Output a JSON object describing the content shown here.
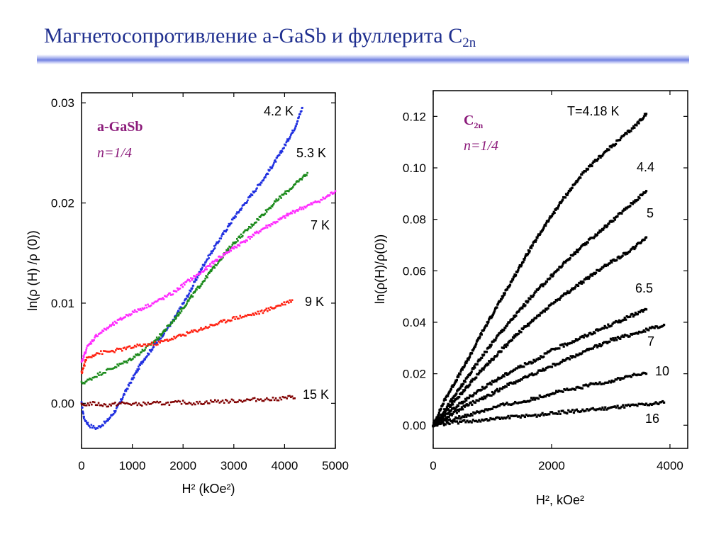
{
  "slide": {
    "title": "Магнетосопротивление a-GaSb и фуллерита C",
    "title_sub": "2n"
  },
  "chart_data": [
    {
      "type": "scatter",
      "xlabel": "H² (kOe²)",
      "ylabel": "ln(ρ (H) /ρ (0))",
      "xlim": [
        0,
        5000
      ],
      "ylim": [
        -0.0045,
        0.031
      ],
      "x_ticks": [
        "0",
        "1000",
        "2000",
        "3000",
        "4000",
        "5000"
      ],
      "y_ticks": [
        "0.00",
        "0.01",
        "0.02",
        "0.03"
      ],
      "annotation_material": "a-GaSb",
      "annotation_n": "n=1/4",
      "series": [
        {
          "name": "4.2 K",
          "color": "#1f2fe0",
          "x": [
            0,
            50,
            150,
            300,
            500,
            700,
            900,
            1200,
            1500,
            1800,
            2100,
            2400,
            2700,
            3000,
            3300,
            3600,
            3900,
            4200,
            4350
          ],
          "y": [
            0.0,
            -0.0015,
            -0.0022,
            -0.0025,
            -0.0018,
            -0.0005,
            0.0015,
            0.0042,
            0.0062,
            0.0082,
            0.0108,
            0.0138,
            0.0162,
            0.0185,
            0.0205,
            0.0225,
            0.0248,
            0.0275,
            0.0295
          ]
        },
        {
          "name": "5.3 K",
          "color": "#1b8a1b",
          "x": [
            0,
            100,
            300,
            600,
            900,
            1200,
            1500,
            1800,
            2100,
            2400,
            2700,
            3000,
            3300,
            3600,
            3900,
            4200,
            4450
          ],
          "y": [
            0.002,
            0.0022,
            0.0028,
            0.0035,
            0.0042,
            0.0052,
            0.0065,
            0.0082,
            0.0102,
            0.0122,
            0.0142,
            0.016,
            0.0175,
            0.019,
            0.0205,
            0.0218,
            0.023
          ]
        },
        {
          "name": "7 K",
          "color": "#ff2aff",
          "x": [
            0,
            100,
            300,
            600,
            900,
            1200,
            1500,
            1800,
            2100,
            2400,
            2700,
            3000,
            3300,
            3600,
            3900,
            4200,
            4500,
            4800,
            5000
          ],
          "y": [
            0.004,
            0.0055,
            0.0068,
            0.0078,
            0.0088,
            0.0095,
            0.0102,
            0.011,
            0.0122,
            0.0132,
            0.0145,
            0.0155,
            0.0165,
            0.0175,
            0.0183,
            0.0192,
            0.0198,
            0.0205,
            0.0212
          ]
        },
        {
          "name": "9 K",
          "color": "#ff2010",
          "x": [
            0,
            100,
            300,
            600,
            900,
            1200,
            1500,
            1800,
            2100,
            2400,
            2700,
            3000,
            3300,
            3600,
            3900,
            4150
          ],
          "y": [
            0.003,
            0.0045,
            0.005,
            0.0052,
            0.0055,
            0.0058,
            0.006,
            0.0065,
            0.007,
            0.0075,
            0.008,
            0.0085,
            0.0088,
            0.0092,
            0.0098,
            0.0103
          ]
        },
        {
          "name": "15 K",
          "color": "#800000",
          "x": [
            0,
            200,
            500,
            800,
            1100,
            1400,
            1700,
            2000,
            2300,
            2600,
            2900,
            3200,
            3500,
            3800,
            4100,
            4200
          ],
          "y": [
            -0.0002,
            0.0,
            -0.0002,
            0.0,
            -0.0001,
            0.0,
            0.0,
            0.0001,
            0.0,
            0.0002,
            0.0002,
            0.0003,
            0.0004,
            0.0004,
            0.0006,
            0.0005
          ]
        }
      ]
    },
    {
      "type": "scatter",
      "xlabel": "H², kOe²",
      "ylabel": "ln(ρ(H)/ρ(0))",
      "xlim": [
        0,
        4300
      ],
      "ylim": [
        -0.009,
        0.13
      ],
      "x_ticks": [
        "0",
        "2000",
        "4000"
      ],
      "y_ticks": [
        "0.00",
        "0.02",
        "0.04",
        "0.06",
        "0.08",
        "0.10",
        "0.12"
      ],
      "annotation_material": "C",
      "annotation_material_sub": "2n",
      "annotation_n": "n=1/4",
      "series": [
        {
          "name": "T=4.18 K",
          "color": "#000000",
          "x": [
            0,
            100,
            200,
            400,
            600,
            800,
            1000,
            1300,
            1600,
            1900,
            2200,
            2500,
            2800,
            3100,
            3400,
            3600
          ],
          "y": [
            0.0,
            0.005,
            0.01,
            0.018,
            0.026,
            0.035,
            0.043,
            0.055,
            0.067,
            0.078,
            0.088,
            0.097,
            0.104,
            0.11,
            0.116,
            0.121
          ]
        },
        {
          "name": "4.4",
          "color": "#000000",
          "x": [
            0,
            200,
            500,
            800,
            1100,
            1400,
            1700,
            2000,
            2300,
            2600,
            2900,
            3200,
            3400,
            3600
          ],
          "y": [
            0.0,
            0.006,
            0.016,
            0.026,
            0.035,
            0.043,
            0.051,
            0.058,
            0.065,
            0.071,
            0.077,
            0.083,
            0.087,
            0.091
          ]
        },
        {
          "name": "5",
          "color": "#000000",
          "x": [
            0,
            200,
            500,
            800,
            1100,
            1400,
            1700,
            2000,
            2300,
            2600,
            2900,
            3200,
            3400,
            3600
          ],
          "y": [
            0.0,
            0.005,
            0.013,
            0.021,
            0.028,
            0.035,
            0.041,
            0.047,
            0.052,
            0.057,
            0.062,
            0.066,
            0.069,
            0.073
          ]
        },
        {
          "name": "6.5",
          "color": "#000000",
          "x": [
            0,
            200,
            500,
            800,
            1100,
            1400,
            1700,
            2000,
            2300,
            2600,
            2900,
            3200,
            3400,
            3600
          ],
          "y": [
            0.0,
            0.004,
            0.009,
            0.014,
            0.018,
            0.022,
            0.025,
            0.029,
            0.032,
            0.035,
            0.038,
            0.041,
            0.043,
            0.045
          ]
        },
        {
          "name": "7",
          "color": "#000000",
          "x": [
            0,
            300,
            600,
            900,
            1200,
            1500,
            1800,
            2100,
            2400,
            2700,
            3000,
            3300,
            3600,
            3900
          ],
          "y": [
            0.0,
            0.004,
            0.008,
            0.011,
            0.015,
            0.018,
            0.021,
            0.024,
            0.027,
            0.03,
            0.033,
            0.035,
            0.037,
            0.039
          ]
        },
        {
          "name": "10",
          "color": "#000000",
          "x": [
            0,
            300,
            600,
            900,
            1200,
            1500,
            1800,
            2100,
            2400,
            2700,
            3000,
            3300,
            3600
          ],
          "y": [
            0.0,
            0.002,
            0.004,
            0.006,
            0.008,
            0.009,
            0.011,
            0.013,
            0.014,
            0.016,
            0.017,
            0.019,
            0.02
          ]
        },
        {
          "name": "16",
          "color": "#000000",
          "x": [
            0,
            300,
            600,
            900,
            1200,
            1500,
            1800,
            2100,
            2400,
            2700,
            3000,
            3300,
            3600,
            3900
          ],
          "y": [
            0.0,
            0.001,
            0.0015,
            0.002,
            0.0028,
            0.0035,
            0.004,
            0.0048,
            0.0055,
            0.006,
            0.0068,
            0.0075,
            0.008,
            0.0088
          ]
        }
      ]
    }
  ]
}
